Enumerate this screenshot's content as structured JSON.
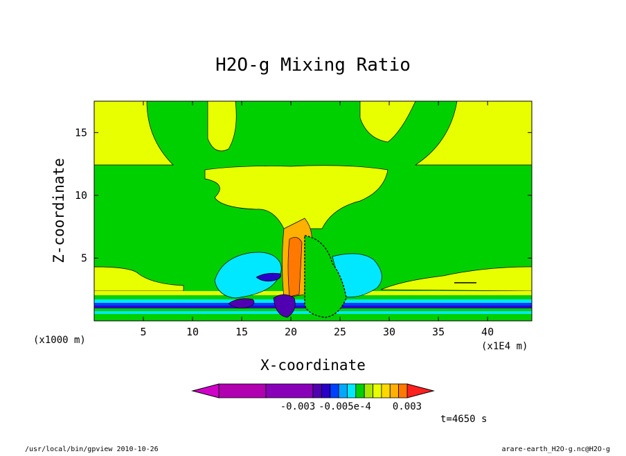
{
  "chart_data": {
    "type": "heatmap",
    "title": "H2O-g Mixing Ratio",
    "xlabel": "X-coordinate",
    "ylabel": "Z-coordinate",
    "x_unit_label": "(x1E4 m)",
    "y_unit_label": "(x1000 m)",
    "xlim": [
      0,
      44.5
    ],
    "ylim": [
      0,
      17.5
    ],
    "x_ticks": [
      "5",
      "10",
      "15",
      "20",
      "25",
      "30",
      "35",
      "40"
    ],
    "x_tick_values": [
      5,
      10,
      15,
      20,
      25,
      30,
      35,
      40
    ],
    "y_ticks": [
      "5",
      "10",
      "15"
    ],
    "y_tick_values": [
      5,
      10,
      15
    ],
    "colorbar": {
      "colors": [
        "#d000c8",
        "#b000b0",
        "#8800b8",
        "#5000b0",
        "#2a00c8",
        "#0040ff",
        "#00a8ff",
        "#00e8ff",
        "#00d000",
        "#a8e800",
        "#e8ff00",
        "#ffd800",
        "#ffb000",
        "#ff7800",
        "#ff2020"
      ],
      "tick_labels": [
        "-0.003",
        "-0.005e-4",
        "0.003"
      ]
    },
    "time_label": "t=4650 s"
  },
  "footer": {
    "left": "/usr/local/bin/gpview   2010-10-26",
    "right": "arare-earth_H2O-g.nc@H2O-g"
  }
}
